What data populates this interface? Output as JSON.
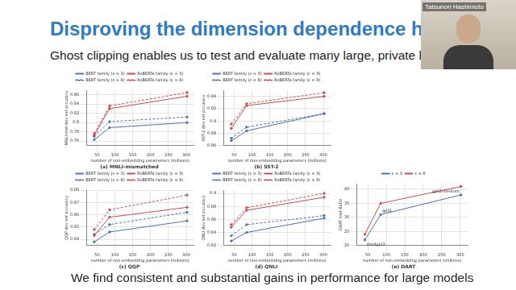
{
  "title": "Disproving the dimension dependence hypothesis",
  "subtitle": "Ghost clipping enables us to test and evaluate many large, private language models",
  "footer": "We find consistent and substantial gains in performance for large models",
  "presenter": "Tatsunori Hashimoto",
  "chart_data": [
    {
      "type": "line",
      "title": "(a) MNLI-mismatched",
      "x_label": "number of non-embedding parameters (millions)",
      "y_label": "MNLI-mm dev set accuracy",
      "x": [
        42,
        85,
        302
      ],
      "series": [
        {
          "name": "BERT family (ε = 3)",
          "color": "#4c72b0",
          "line_style": "solid",
          "values": [
            0.763,
            0.789,
            0.8
          ]
        },
        {
          "name": "RoBERTa family (ε = 3)",
          "color": "#c44e52",
          "line_style": "solid",
          "values": [
            0.772,
            0.83,
            0.857
          ]
        },
        {
          "name": "BERT family (ε = 8)",
          "color": "#4c72b0",
          "line_style": "dashed",
          "values": [
            0.77,
            0.802,
            0.812
          ]
        },
        {
          "name": "RoBERTa family (ε = 8)",
          "color": "#c44e52",
          "line_style": "dashed",
          "values": [
            0.776,
            0.836,
            0.865
          ]
        }
      ],
      "xlim": [
        20,
        320
      ],
      "xticks": [
        50,
        100,
        150,
        200,
        250,
        300
      ],
      "ylim": [
        0.75,
        0.87
      ],
      "yticks": [
        0.76,
        0.78,
        0.8,
        0.82,
        0.84,
        0.86
      ],
      "grid": true
    },
    {
      "type": "line",
      "title": "(b) SST-2",
      "x_label": "number of non-embedding parameters (millions)",
      "y_label": "SST-2 dev set accuracy",
      "x": [
        42,
        85,
        302
      ],
      "series": [
        {
          "name": "BERT family (ε = 3)",
          "color": "#4c72b0",
          "line_style": "solid",
          "values": [
            0.868,
            0.884,
            0.912
          ]
        },
        {
          "name": "RoBERTa family (ε = 3)",
          "color": "#c44e52",
          "line_style": "solid",
          "values": [
            0.888,
            0.925,
            0.94
          ]
        },
        {
          "name": "BERT family (ε = 8)",
          "color": "#4c72b0",
          "line_style": "dashed",
          "values": [
            0.872,
            0.89,
            0.912
          ]
        },
        {
          "name": "RoBERTa family (ε = 8)",
          "color": "#c44e52",
          "line_style": "dashed",
          "values": [
            0.895,
            0.928,
            0.946
          ]
        }
      ],
      "xlim": [
        20,
        320
      ],
      "xticks": [
        50,
        100,
        150,
        200,
        250,
        300
      ],
      "ylim": [
        0.86,
        0.95
      ],
      "yticks": [
        0.86,
        0.88,
        0.9,
        0.92,
        0.94
      ],
      "grid": true
    },
    {
      "type": "line",
      "title": "(c) QQP",
      "x_label": "number of non-embedding parameters (millions)",
      "y_label": "QQP dev set accuracy",
      "x": [
        42,
        85,
        302
      ],
      "series": [
        {
          "name": "BERT family (ε = 3)",
          "color": "#4c72b0",
          "line_style": "solid",
          "values": [
            0.838,
            0.846,
            0.855
          ]
        },
        {
          "name": "RoBERTa family (ε = 3)",
          "color": "#c44e52",
          "line_style": "solid",
          "values": [
            0.843,
            0.858,
            0.866
          ]
        },
        {
          "name": "BERT family (ε = 8)",
          "color": "#4c72b0",
          "line_style": "dashed",
          "values": [
            0.844,
            0.852,
            0.862
          ]
        },
        {
          "name": "RoBERTa family (ε = 8)",
          "color": "#c44e52",
          "line_style": "dashed",
          "values": [
            0.848,
            0.864,
            0.876
          ]
        }
      ],
      "xlim": [
        20,
        320
      ],
      "xticks": [
        50,
        100,
        150,
        200,
        250,
        300
      ],
      "ylim": [
        0.835,
        0.88
      ],
      "yticks": [
        0.84,
        0.85,
        0.86,
        0.87,
        0.88
      ],
      "grid": true
    },
    {
      "type": "line",
      "title": "(d) QNLI",
      "x_label": "number of non-embedding parameters (millions)",
      "y_label": "QNLI dev set accuracy",
      "x": [
        42,
        85,
        302
      ],
      "series": [
        {
          "name": "BERT family (ε = 3)",
          "color": "#4c72b0",
          "line_style": "solid",
          "values": [
            0.827,
            0.84,
            0.862
          ]
        },
        {
          "name": "RoBERTa family (ε = 3)",
          "color": "#c44e52",
          "line_style": "solid",
          "values": [
            0.848,
            0.874,
            0.894
          ]
        },
        {
          "name": "BERT family (ε = 8)",
          "color": "#4c72b0",
          "line_style": "dashed",
          "values": [
            0.835,
            0.852,
            0.866
          ]
        },
        {
          "name": "RoBERTa family (ε = 8)",
          "color": "#c44e52",
          "line_style": "dashed",
          "values": [
            0.852,
            0.878,
            0.9
          ]
        }
      ],
      "xlim": [
        20,
        320
      ],
      "xticks": [
        50,
        100,
        150,
        200,
        250,
        300
      ],
      "ylim": [
        0.82,
        0.905
      ],
      "yticks": [
        0.82,
        0.84,
        0.86,
        0.88,
        0.9
      ],
      "grid": true
    },
    {
      "type": "line",
      "title": "(e) DART",
      "x_label": "number of non-embedding parameters (millions)",
      "y_label": "DART test BLEU",
      "x": [
        42,
        85,
        302
      ],
      "annotations": [
        "distilgpt2",
        "gpt2",
        "gpt2-medium"
      ],
      "series": [
        {
          "name": "ε = 3",
          "color": "#4c72b0",
          "line_style": "solid",
          "values": [
            22,
            31,
            38
          ]
        },
        {
          "name": "ε = 8",
          "color": "#c44e52",
          "line_style": "solid",
          "values": [
            24,
            35,
            41
          ]
        }
      ],
      "xlim": [
        20,
        320
      ],
      "xticks": [
        50,
        100,
        150,
        200,
        250,
        300
      ],
      "ylim": [
        20,
        42
      ],
      "yticks": [
        20,
        25,
        30,
        35,
        40
      ],
      "grid": true
    }
  ]
}
